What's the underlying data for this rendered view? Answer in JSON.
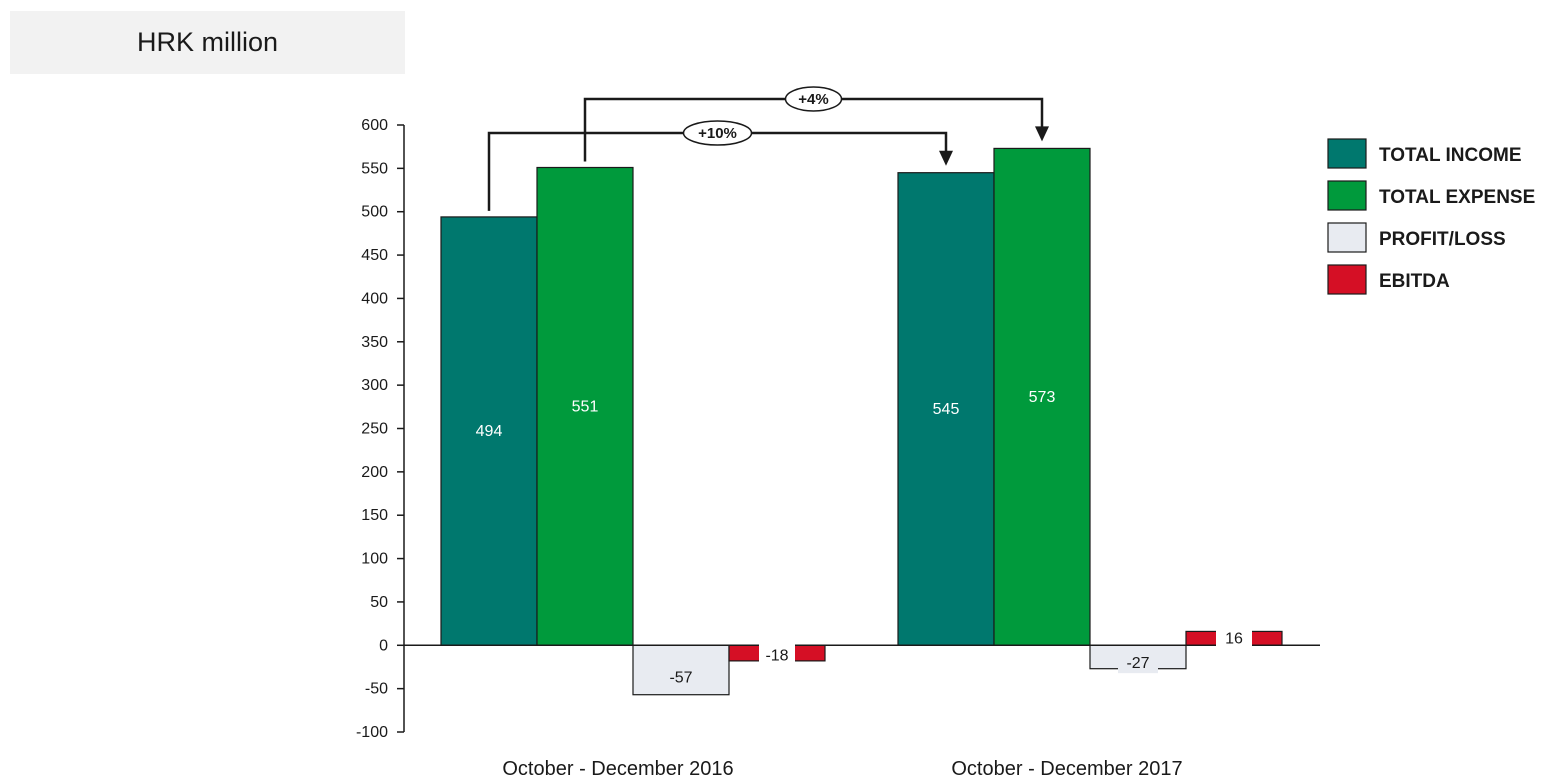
{
  "unit_label": "HRK million",
  "chart_data": {
    "type": "bar",
    "categories": [
      "October - December 2016",
      "October - December 2017"
    ],
    "series": [
      {
        "name": "TOTAL INCOME",
        "values": [
          494,
          545
        ],
        "color": "#00786e"
      },
      {
        "name": "TOTAL EXPENSE",
        "values": [
          551,
          573
        ],
        "color": "#009a3c"
      },
      {
        "name": "PROFIT/LOSS",
        "values": [
          -57,
          -27
        ],
        "color": "#e8ebf1"
      },
      {
        "name": "EBITDA",
        "values": [
          -18,
          16
        ],
        "color": "#d50f25"
      }
    ],
    "data_labels": [
      [
        "494",
        "551",
        "-57",
        "-18"
      ],
      [
        "545",
        "573",
        "-27",
        "16"
      ]
    ],
    "ylim": [
      -100,
      600
    ],
    "yticks": [
      -100,
      -50,
      0,
      50,
      100,
      150,
      200,
      250,
      300,
      350,
      400,
      450,
      500,
      550,
      600
    ],
    "legend_position": "right",
    "annotations": [
      {
        "text": "+10%",
        "from_series": "TOTAL INCOME",
        "to_series": "TOTAL INCOME"
      },
      {
        "text": "+4%",
        "from_series": "TOTAL EXPENSE",
        "to_series": "TOTAL EXPENSE"
      }
    ]
  }
}
